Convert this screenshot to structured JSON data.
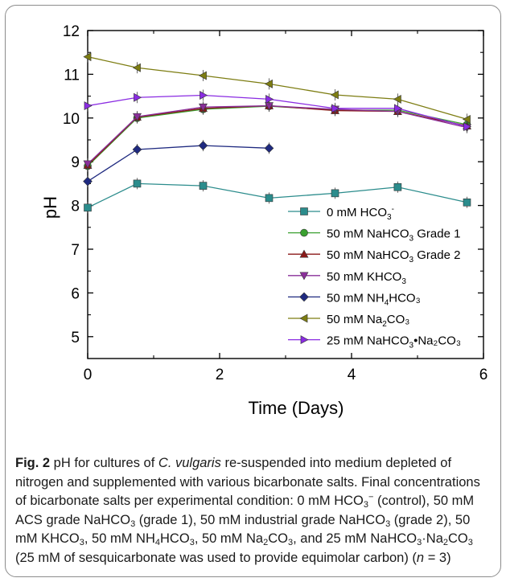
{
  "chart_data": {
    "type": "line",
    "xlabel": "Time (Days)",
    "ylabel": "pH",
    "xlim": [
      0,
      6
    ],
    "ylim": [
      4.5,
      12
    ],
    "xticks": [
      0,
      2,
      4,
      6
    ],
    "yticks": [
      5,
      6,
      7,
      8,
      9,
      10,
      11,
      12
    ],
    "legend_position": "bottom-right",
    "grid": false,
    "series": [
      {
        "name": "0 mM HCO3-",
        "label_main": "0 mM HCO",
        "sub": "3",
        "sup": "-",
        "label_tail": "",
        "color": "#2b8c8c",
        "marker": "square",
        "x": [
          0,
          0.75,
          1.75,
          2.75,
          3.75,
          4.7,
          5.75
        ],
        "y": [
          7.95,
          8.5,
          8.45,
          8.17,
          8.28,
          8.42,
          8.07
        ]
      },
      {
        "name": "50 mM NaHCO3 Grade 1",
        "label_main": "50 mM NaHCO",
        "sub": "3",
        "sup": "",
        "label_tail": " Grade 1",
        "color": "#3aa030",
        "marker": "circle",
        "x": [
          0,
          0.75,
          1.75,
          2.75,
          3.75,
          4.7,
          5.75
        ],
        "y": [
          8.9,
          10.0,
          10.2,
          10.27,
          10.18,
          10.18,
          9.85
        ]
      },
      {
        "name": "50 mM NaHCO3 Grade 2",
        "label_main": "50 mM NaHCO",
        "sub": "3",
        "sup": "",
        "label_tail": " Grade 2",
        "color": "#8b1a1a",
        "marker": "triangle-up",
        "x": [
          0,
          0.75,
          1.75,
          2.75,
          3.75,
          4.7,
          5.75
        ],
        "y": [
          8.92,
          10.02,
          10.22,
          10.28,
          10.17,
          10.15,
          9.82
        ]
      },
      {
        "name": "50 mM KHCO3",
        "label_main": "50 mM KHCO",
        "sub": "3",
        "sup": "",
        "label_tail": "",
        "color": "#8a2f9a",
        "marker": "triangle-down",
        "x": [
          0,
          0.75,
          1.75,
          2.75,
          3.75,
          4.7,
          5.75
        ],
        "y": [
          8.95,
          10.03,
          10.25,
          10.28,
          10.2,
          10.15,
          9.78
        ]
      },
      {
        "name": "50 mM NH4HCO3",
        "label_main": "50 mM NH",
        "sub": "4",
        "sup": "",
        "label_tail": "HCO₃",
        "color": "#1f2a80",
        "marker": "diamond",
        "x": [
          0,
          0.75,
          1.75,
          2.75
        ],
        "y": [
          8.55,
          9.28,
          9.37,
          9.31
        ]
      },
      {
        "name": "50 mM Na2CO3",
        "label_main": "50 mM Na",
        "sub": "2",
        "sup": "",
        "label_tail": "CO₃",
        "color": "#7d7d12",
        "marker": "triangle-left",
        "x": [
          0,
          0.75,
          1.75,
          2.75,
          3.75,
          4.7,
          5.75
        ],
        "y": [
          11.4,
          11.15,
          10.97,
          10.78,
          10.53,
          10.43,
          9.97
        ]
      },
      {
        "name": "25 mM NaHCO3•Na2CO3",
        "label_main": "25 mM NaHCO",
        "sub": "3",
        "sup": "",
        "label_tail": "•Na₂CO₃",
        "color": "#8a2be2",
        "marker": "triangle-right",
        "x": [
          0,
          0.75,
          1.75,
          2.75,
          3.75,
          4.7,
          5.75
        ],
        "y": [
          10.28,
          10.47,
          10.52,
          10.43,
          10.22,
          10.22,
          9.8
        ]
      }
    ]
  },
  "caption": {
    "fig_label": "Fig. 2",
    "t1": " pH for cultures of ",
    "organism": "C. vulgaris",
    "t2": " re-suspended into medium depleted of nitrogen and supplemented with various bicarbonate salts. Final concentrations of bicarbonate salts per experimental condition: 0 mM HCO",
    "t3": " (control), 50 mM ACS grade NaHCO",
    "t4": " (grade 1), 50 mM industrial grade NaHCO",
    "t5": " (grade 2), 50 mM KHCO",
    "t6": ", 50 mM NH",
    "t7": "HCO",
    "t8": ", 50 mM Na",
    "t9": "CO",
    "t10": ", and 25 mM NaHCO",
    "t11": "·Na",
    "t12": "CO",
    "t13": " (25 mM of sesquicarbonate was used to provide equimolar carbon) (",
    "n_var": "n",
    "t14": " = 3)"
  }
}
